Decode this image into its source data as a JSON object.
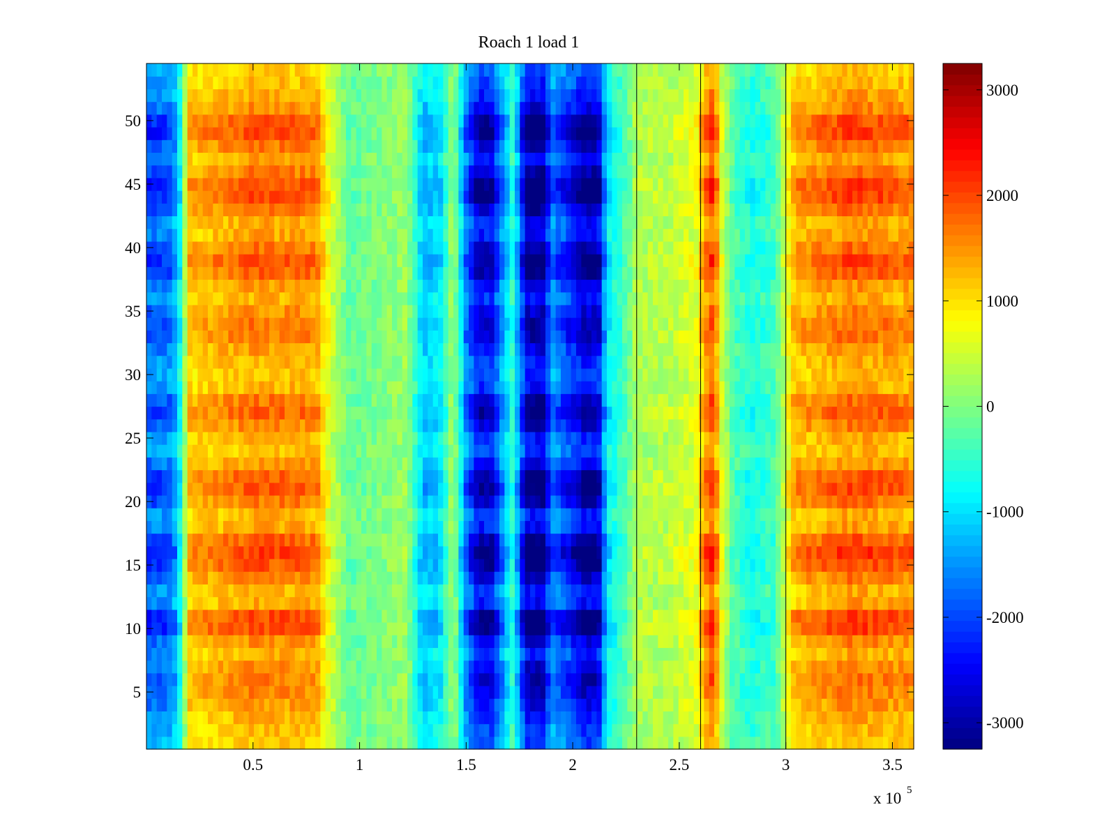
{
  "chart_data": {
    "type": "heatmap",
    "title": "Roach 1 load 1",
    "xlabel": "",
    "ylabel": "",
    "x_multiplier_label": "x 10",
    "x_multiplier_exponent": "5",
    "xlim": [
      0,
      3.6
    ],
    "ylim": [
      0.5,
      54.5
    ],
    "x_ticks": [
      0.5,
      1,
      1.5,
      2,
      2.5,
      3,
      3.5
    ],
    "x_tick_labels": [
      "0.5",
      "1",
      "1.5",
      "2",
      "2.5",
      "3",
      "3.5"
    ],
    "y_ticks": [
      5,
      10,
      15,
      20,
      25,
      30,
      35,
      40,
      45,
      50
    ],
    "y_tick_labels": [
      "5",
      "10",
      "15",
      "20",
      "25",
      "30",
      "35",
      "40",
      "45",
      "50"
    ],
    "n_rows": 54,
    "colormap": "jet",
    "colorbar": {
      "clim": [
        -3250,
        3250
      ],
      "ticks": [
        3000,
        2000,
        1000,
        0,
        -1000,
        -2000,
        -3000
      ],
      "tick_labels": [
        "3000",
        "2000",
        "1000",
        "0",
        "-1000",
        "-2000",
        "-3000"
      ]
    },
    "column_profile": [
      {
        "x": 0.0,
        "v": -2000
      },
      {
        "x": 0.12,
        "v": -1800
      },
      {
        "x": 0.16,
        "v": -800
      },
      {
        "x": 0.2,
        "v": 1300
      },
      {
        "x": 0.5,
        "v": 1700
      },
      {
        "x": 0.8,
        "v": 1600
      },
      {
        "x": 0.86,
        "v": 600
      },
      {
        "x": 0.95,
        "v": -200
      },
      {
        "x": 1.1,
        "v": 0
      },
      {
        "x": 1.22,
        "v": 200
      },
      {
        "x": 1.3,
        "v": -1300
      },
      {
        "x": 1.38,
        "v": -1000
      },
      {
        "x": 1.44,
        "v": 300
      },
      {
        "x": 1.5,
        "v": -1800
      },
      {
        "x": 1.56,
        "v": -2800
      },
      {
        "x": 1.62,
        "v": -2700
      },
      {
        "x": 1.68,
        "v": -1400
      },
      {
        "x": 1.72,
        "v": -500
      },
      {
        "x": 1.78,
        "v": -3000
      },
      {
        "x": 1.86,
        "v": -3100
      },
      {
        "x": 1.9,
        "v": -1700
      },
      {
        "x": 1.96,
        "v": -2200
      },
      {
        "x": 2.06,
        "v": -3000
      },
      {
        "x": 2.12,
        "v": -2900
      },
      {
        "x": 2.16,
        "v": -1000
      },
      {
        "x": 2.25,
        "v": -300
      },
      {
        "x": 2.3,
        "v": 300
      },
      {
        "x": 2.45,
        "v": 400
      },
      {
        "x": 2.58,
        "v": 700
      },
      {
        "x": 2.62,
        "v": 1600
      },
      {
        "x": 2.66,
        "v": 2100
      },
      {
        "x": 2.7,
        "v": 600
      },
      {
        "x": 2.75,
        "v": -300
      },
      {
        "x": 2.84,
        "v": -700
      },
      {
        "x": 2.95,
        "v": -400
      },
      {
        "x": 3.0,
        "v": 600
      },
      {
        "x": 3.04,
        "v": 1400
      },
      {
        "x": 3.3,
        "v": 1800
      },
      {
        "x": 3.6,
        "v": 1600
      }
    ],
    "row_profile": [
      {
        "y": 1,
        "v": 0.3
      },
      {
        "y": 2,
        "v": 0.4
      },
      {
        "y": 3,
        "v": 0.5
      },
      {
        "y": 4,
        "v": 0.7
      },
      {
        "y": 5,
        "v": 0.9
      },
      {
        "y": 6,
        "v": 1.0
      },
      {
        "y": 7,
        "v": 0.8
      },
      {
        "y": 8,
        "v": 0.5
      },
      {
        "y": 9,
        "v": 0.8
      },
      {
        "y": 10,
        "v": 1.4
      },
      {
        "y": 11,
        "v": 1.4
      },
      {
        "y": 12,
        "v": 0.6
      },
      {
        "y": 13,
        "v": 0.5
      },
      {
        "y": 14,
        "v": 0.9
      },
      {
        "y": 15,
        "v": 1.3
      },
      {
        "y": 16,
        "v": 1.5
      },
      {
        "y": 17,
        "v": 1.2
      },
      {
        "y": 18,
        "v": 0.6
      },
      {
        "y": 19,
        "v": 0.5
      },
      {
        "y": 20,
        "v": 1.0
      },
      {
        "y": 21,
        "v": 1.3
      },
      {
        "y": 22,
        "v": 1.2
      },
      {
        "y": 23,
        "v": 0.7
      },
      {
        "y": 24,
        "v": 0.4
      },
      {
        "y": 25,
        "v": 0.5
      },
      {
        "y": 26,
        "v": 0.9
      },
      {
        "y": 27,
        "v": 1.2
      },
      {
        "y": 28,
        "v": 1.0
      },
      {
        "y": 29,
        "v": 0.5
      },
      {
        "y": 30,
        "v": 0.4
      },
      {
        "y": 31,
        "v": 0.5
      },
      {
        "y": 32,
        "v": 0.7
      },
      {
        "y": 33,
        "v": 1.0
      },
      {
        "y": 34,
        "v": 1.0
      },
      {
        "y": 35,
        "v": 0.8
      },
      {
        "y": 36,
        "v": 0.5
      },
      {
        "y": 37,
        "v": 0.7
      },
      {
        "y": 38,
        "v": 1.2
      },
      {
        "y": 39,
        "v": 1.3
      },
      {
        "y": 40,
        "v": 1.0
      },
      {
        "y": 41,
        "v": 0.6
      },
      {
        "y": 42,
        "v": 0.6
      },
      {
        "y": 43,
        "v": 1.0
      },
      {
        "y": 44,
        "v": 1.4
      },
      {
        "y": 45,
        "v": 1.4
      },
      {
        "y": 46,
        "v": 1.0
      },
      {
        "y": 47,
        "v": 0.6
      },
      {
        "y": 48,
        "v": 1.0
      },
      {
        "y": 49,
        "v": 1.4
      },
      {
        "y": 50,
        "v": 1.3
      },
      {
        "y": 51,
        "v": 0.8
      },
      {
        "y": 52,
        "v": 0.6
      },
      {
        "y": 53,
        "v": 0.4
      },
      {
        "y": 54,
        "v": 0.3
      }
    ],
    "vertical_lines_x": [
      2.3,
      2.6,
      3.0
    ]
  }
}
